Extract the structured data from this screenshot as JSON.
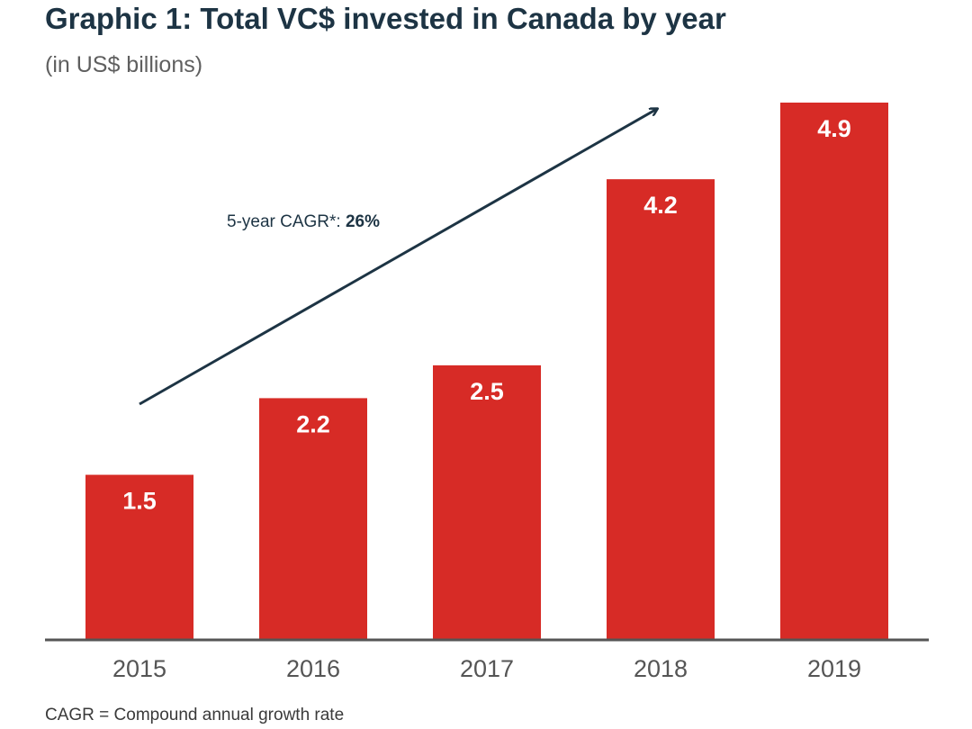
{
  "header": {
    "title": "Graphic 1: Total VC$ invested in Canada by year",
    "subtitle": "(in US$ billions)"
  },
  "annotation": {
    "label_prefix": "5-year CAGR*: ",
    "label_value": "26%"
  },
  "footnote": "CAGR = Compound annual growth rate",
  "colors": {
    "bar": "#d72b26",
    "bar_label": "#ffffff",
    "axis": "#555555",
    "arrow": "#1d3444",
    "tick_label": "#555555"
  },
  "chart_data": {
    "type": "bar",
    "categories": [
      "2015",
      "2016",
      "2017",
      "2018",
      "2019"
    ],
    "values": [
      1.5,
      2.2,
      2.5,
      4.2,
      4.9
    ],
    "value_labels": [
      "1.5",
      "2.2",
      "2.5",
      "4.2",
      "4.9"
    ],
    "title": "Graphic 1: Total VC$ invested in Canada by year",
    "subtitle": "(in US$ billions)",
    "xlabel": "",
    "ylabel": "",
    "ylim": [
      0,
      4.9
    ],
    "grid": false,
    "legend": "none"
  }
}
